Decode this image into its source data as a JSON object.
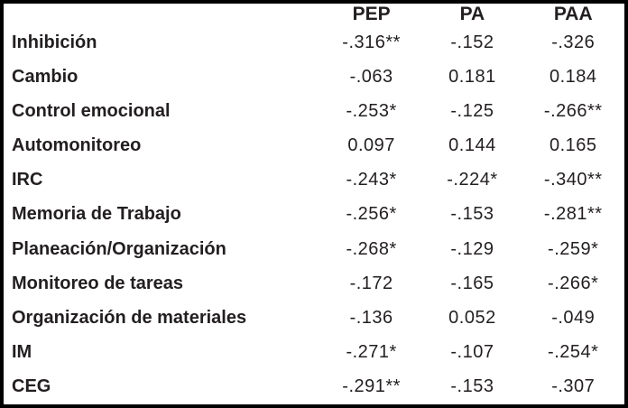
{
  "chart_data": {
    "type": "table",
    "title": "",
    "columns": [
      "",
      "PEP",
      "PA",
      "PAA"
    ],
    "rows": [
      {
        "label": "Inhibición",
        "values": [
          "-.316**",
          "-.152",
          "-.326"
        ]
      },
      {
        "label": "Cambio",
        "values": [
          "-.063",
          "0.181",
          "0.184"
        ]
      },
      {
        "label": "Control emocional",
        "values": [
          "-.253*",
          "-.125",
          "-.266**"
        ]
      },
      {
        "label": "Automonitoreo",
        "values": [
          "0.097",
          "0.144",
          "0.165"
        ]
      },
      {
        "label": "IRC",
        "values": [
          "-.243*",
          "-.224*",
          "-.340**"
        ]
      },
      {
        "label": "Memoria de Trabajo",
        "values": [
          "-.256*",
          "-.153",
          "-.281**"
        ]
      },
      {
        "label": "Planeación/Organización",
        "values": [
          "-.268*",
          "-.129",
          "-.259*"
        ]
      },
      {
        "label": "Monitoreo de tareas",
        "values": [
          "-.172",
          "-.165",
          "-.266*"
        ]
      },
      {
        "label": "Organización de materiales",
        "values": [
          "-.136",
          "0.052",
          "-.049"
        ]
      },
      {
        "label": "IM",
        "values": [
          "-.271*",
          "-.107",
          "-.254*"
        ]
      },
      {
        "label": "CEG",
        "values": [
          "-.291**",
          "-.153",
          "-.307"
        ]
      }
    ],
    "layout": {
      "grid": false,
      "outer_border": true,
      "value_alignment": "center"
    },
    "colors": {
      "text": "#231f20",
      "border": "#000000",
      "background": "#ffffff"
    }
  }
}
